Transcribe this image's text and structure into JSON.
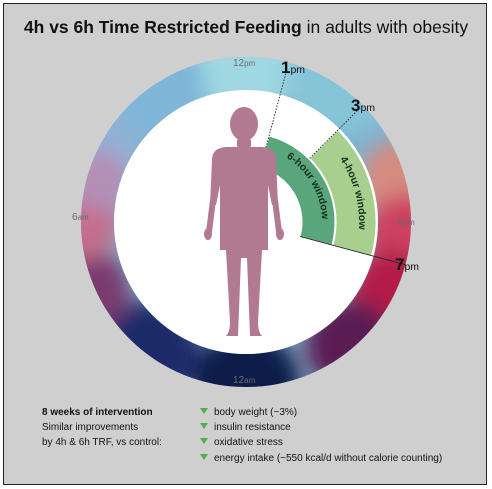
{
  "title": {
    "bold": "4h vs 6h Time Restricted Feeding",
    "rest": " in adults with obesity"
  },
  "clock": {
    "noon": {
      "num": "12",
      "unit": "pm"
    },
    "six_pm": {
      "num": "6",
      "unit": "pm"
    },
    "midnight": {
      "num": "12",
      "unit": "am"
    },
    "six_am": {
      "num": "6",
      "unit": "am"
    }
  },
  "windows": {
    "four_hour": {
      "label": "4-hour window",
      "start_hour": 15,
      "end_hour": 19,
      "color": "#a8cf8e"
    },
    "six_hour": {
      "label": "6-hour window",
      "start_hour": 13,
      "end_hour": 19,
      "color": "#5aa67c"
    }
  },
  "times": {
    "one_pm": {
      "num": "1",
      "unit": "pm"
    },
    "three_pm": {
      "num": "3",
      "unit": "pm"
    },
    "seven_pm": {
      "num": "7",
      "unit": "pm"
    }
  },
  "colors": {
    "figure": "#b17a90",
    "background": "#cfcfcf",
    "arrow": "#4cb24a"
  },
  "footer": {
    "heading": "8 weeks of intervention",
    "line1": "Similar improvements",
    "line2": "by 4h & 6h TRF, vs control:"
  },
  "benefits": [
    "body weight (~3%)",
    "insulin resistance",
    "oxidative stress",
    "energy intake (~550 kcal/d without calorie counting)"
  ]
}
